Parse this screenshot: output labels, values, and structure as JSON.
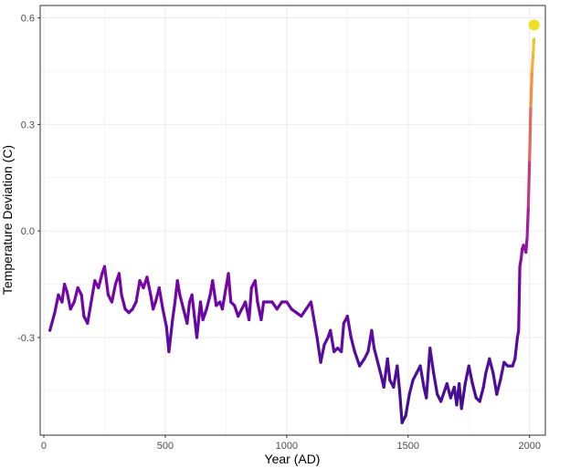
{
  "chart_data": {
    "type": "line",
    "xlabel": "Year (AD)",
    "ylabel": "Temperature Deviation (C)",
    "xlim": [
      -15,
      2065
    ],
    "ylim": [
      -0.575,
      0.635
    ],
    "xticks": [
      0,
      500,
      1000,
      1500,
      2000
    ],
    "yticks": [
      -0.3,
      0.0,
      0.3,
      0.6
    ],
    "ytick_labels": [
      "-0.3",
      "0.0",
      "0.3",
      "0.6"
    ],
    "grid": true,
    "legend": "none",
    "color_scale": "plasma (low = dark purple, high = yellow)",
    "colors": {
      "low": "#3b0f8c",
      "mid": "#b12a90",
      "high": "#f0e120",
      "endpoint": "#f0e120",
      "panel_border": "#333333",
      "grid": "#ebebeb"
    },
    "series": [
      {
        "x": [
          25,
          45,
          60,
          75,
          85,
          95,
          110,
          125,
          140,
          155,
          165,
          180,
          195,
          210,
          225,
          240,
          250,
          265,
          280,
          295,
          310,
          320,
          335,
          350,
          365,
          380,
          395,
          410,
          425,
          440,
          450,
          460,
          475,
          490,
          505,
          515,
          530,
          540,
          550,
          560,
          575,
          590,
          600,
          610,
          620,
          630,
          645,
          655,
          670,
          685,
          695,
          710,
          725,
          735,
          745,
          760,
          770,
          785,
          800,
          815,
          830,
          845,
          855,
          870,
          880,
          895,
          905,
          920,
          940,
          960,
          980,
          1000,
          1020,
          1040,
          1060,
          1080,
          1100,
          1110,
          1125,
          1140,
          1155,
          1170,
          1180,
          1195,
          1210,
          1225,
          1235,
          1250,
          1265,
          1280,
          1300,
          1320,
          1335,
          1350,
          1360,
          1375,
          1390,
          1400,
          1415,
          1425,
          1440,
          1455,
          1465,
          1475,
          1490,
          1505,
          1520,
          1535,
          1550,
          1565,
          1575,
          1590,
          1605,
          1620,
          1635,
          1650,
          1660,
          1675,
          1690,
          1700,
          1710,
          1720,
          1735,
          1750,
          1765,
          1780,
          1795,
          1810,
          1820,
          1835,
          1850,
          1865,
          1880,
          1895,
          1910,
          1920,
          1930,
          1940,
          1950,
          1955,
          1960,
          1965,
          1970,
          1975,
          1980,
          1985,
          1990,
          1995,
          2000,
          2005,
          2010,
          2015,
          2018
        ],
        "y": [
          -0.28,
          -0.23,
          -0.18,
          -0.2,
          -0.15,
          -0.17,
          -0.22,
          -0.2,
          -0.16,
          -0.18,
          -0.24,
          -0.26,
          -0.2,
          -0.14,
          -0.16,
          -0.12,
          -0.1,
          -0.18,
          -0.2,
          -0.15,
          -0.12,
          -0.18,
          -0.22,
          -0.23,
          -0.22,
          -0.2,
          -0.14,
          -0.16,
          -0.13,
          -0.18,
          -0.22,
          -0.2,
          -0.16,
          -0.22,
          -0.27,
          -0.34,
          -0.25,
          -0.2,
          -0.14,
          -0.18,
          -0.22,
          -0.26,
          -0.2,
          -0.18,
          -0.24,
          -0.3,
          -0.2,
          -0.25,
          -0.22,
          -0.18,
          -0.14,
          -0.21,
          -0.2,
          -0.22,
          -0.18,
          -0.12,
          -0.2,
          -0.21,
          -0.24,
          -0.22,
          -0.2,
          -0.25,
          -0.16,
          -0.14,
          -0.2,
          -0.25,
          -0.2,
          -0.2,
          -0.2,
          -0.22,
          -0.2,
          -0.2,
          -0.22,
          -0.23,
          -0.24,
          -0.22,
          -0.2,
          -0.24,
          -0.3,
          -0.37,
          -0.32,
          -0.3,
          -0.28,
          -0.34,
          -0.33,
          -0.34,
          -0.26,
          -0.24,
          -0.3,
          -0.34,
          -0.38,
          -0.36,
          -0.34,
          -0.28,
          -0.33,
          -0.37,
          -0.41,
          -0.44,
          -0.36,
          -0.42,
          -0.44,
          -0.38,
          -0.45,
          -0.54,
          -0.52,
          -0.46,
          -0.42,
          -0.4,
          -0.38,
          -0.44,
          -0.47,
          -0.33,
          -0.4,
          -0.46,
          -0.48,
          -0.45,
          -0.43,
          -0.47,
          -0.44,
          -0.49,
          -0.43,
          -0.5,
          -0.43,
          -0.38,
          -0.43,
          -0.47,
          -0.48,
          -0.44,
          -0.4,
          -0.36,
          -0.4,
          -0.46,
          -0.42,
          -0.37,
          -0.38,
          -0.38,
          -0.38,
          -0.36,
          -0.3,
          -0.28,
          -0.1,
          -0.08,
          -0.05,
          -0.04,
          -0.05,
          -0.06,
          -0.02,
          0.07,
          0.2,
          0.35,
          0.45,
          0.5,
          0.54
        ]
      }
    ],
    "endpoint": {
      "x": 2019,
      "y": 0.58
    }
  }
}
